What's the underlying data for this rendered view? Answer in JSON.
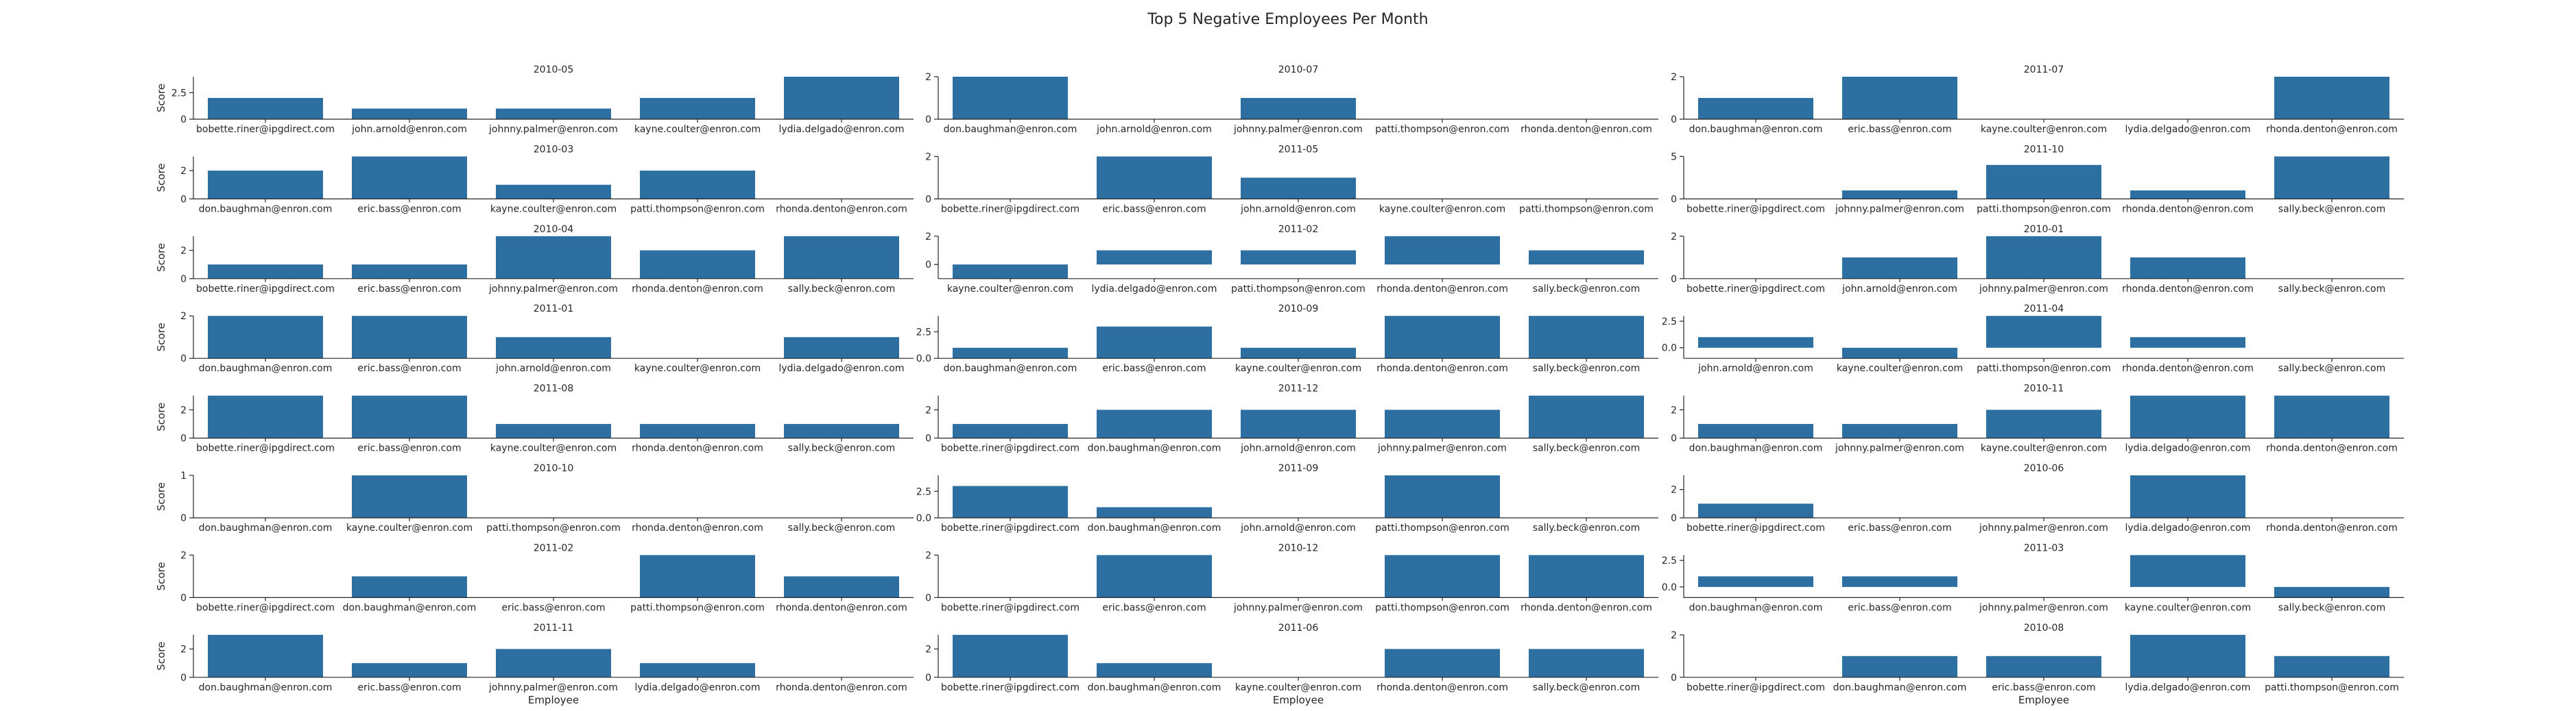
{
  "figure": {
    "title": "Top 5 Negative Employees Per Month"
  },
  "chart_data": {
    "type": "bar",
    "title": "Top 5 Negative Employees Per Month",
    "ylabel": "Score",
    "xlabel": "Employee",
    "bar_color": "#2e6fa2",
    "panels": [
      {
        "title": "2010-05",
        "ylim": [
          0,
          4
        ],
        "yticks": [
          "0",
          "2.5"
        ],
        "yticks_values": [
          0,
          2.5
        ],
        "categories": [
          "bobette.riner@ipgdirect.com",
          "john.arnold@enron.com",
          "johnny.palmer@enron.com",
          "kayne.coulter@enron.com",
          "lydia.delgado@enron.com"
        ],
        "values": [
          2,
          1,
          1,
          2,
          4
        ]
      },
      {
        "title": "2010-07",
        "ylim": [
          0,
          2
        ],
        "yticks": [
          "0",
          "2"
        ],
        "yticks_values": [
          0,
          2
        ],
        "categories": [
          "don.baughman@enron.com",
          "john.arnold@enron.com",
          "johnny.palmer@enron.com",
          "patti.thompson@enron.com",
          "rhonda.denton@enron.com"
        ],
        "values": [
          2,
          0,
          1,
          0,
          0
        ]
      },
      {
        "title": "2011-07",
        "ylim": [
          0,
          2
        ],
        "yticks": [
          "0",
          "2"
        ],
        "yticks_values": [
          0,
          2
        ],
        "categories": [
          "don.baughman@enron.com",
          "eric.bass@enron.com",
          "kayne.coulter@enron.com",
          "lydia.delgado@enron.com",
          "rhonda.denton@enron.com"
        ],
        "values": [
          1,
          2,
          0,
          0,
          2
        ]
      },
      {
        "title": "2010-03",
        "ylim": [
          0,
          3
        ],
        "yticks": [
          "0",
          "2"
        ],
        "yticks_values": [
          0,
          2
        ],
        "categories": [
          "don.baughman@enron.com",
          "eric.bass@enron.com",
          "kayne.coulter@enron.com",
          "patti.thompson@enron.com",
          "rhonda.denton@enron.com"
        ],
        "values": [
          2,
          3,
          1,
          2,
          0
        ]
      },
      {
        "title": "2011-05",
        "ylim": [
          0,
          2
        ],
        "yticks": [
          "0",
          "2"
        ],
        "yticks_values": [
          0,
          2
        ],
        "categories": [
          "bobette.riner@ipgdirect.com",
          "eric.bass@enron.com",
          "john.arnold@enron.com",
          "kayne.coulter@enron.com",
          "patti.thompson@enron.com"
        ],
        "values": [
          0,
          2,
          1,
          0,
          0
        ]
      },
      {
        "title": "2011-10",
        "ylim": [
          0,
          5
        ],
        "yticks": [
          "0",
          "5"
        ],
        "yticks_values": [
          0,
          5
        ],
        "categories": [
          "bobette.riner@ipgdirect.com",
          "johnny.palmer@enron.com",
          "patti.thompson@enron.com",
          "rhonda.denton@enron.com",
          "sally.beck@enron.com"
        ],
        "values": [
          0,
          1,
          4,
          1,
          5
        ]
      },
      {
        "title": "2010-04",
        "ylim": [
          0,
          3
        ],
        "yticks": [
          "0",
          "2"
        ],
        "yticks_values": [
          0,
          2
        ],
        "categories": [
          "bobette.riner@ipgdirect.com",
          "eric.bass@enron.com",
          "johnny.palmer@enron.com",
          "rhonda.denton@enron.com",
          "sally.beck@enron.com"
        ],
        "values": [
          1,
          1,
          3,
          2,
          3
        ]
      },
      {
        "title": "2011-02",
        "ylim": [
          -1,
          2
        ],
        "yticks": [
          "0",
          "2"
        ],
        "yticks_values": [
          0,
          2
        ],
        "categories": [
          "kayne.coulter@enron.com",
          "lydia.delgado@enron.com",
          "patti.thompson@enron.com",
          "rhonda.denton@enron.com",
          "sally.beck@enron.com"
        ],
        "values": [
          -1,
          1,
          1,
          2,
          1
        ]
      },
      {
        "title": "2010-01",
        "ylim": [
          0,
          2
        ],
        "yticks": [
          "0",
          "2"
        ],
        "yticks_values": [
          0,
          2
        ],
        "categories": [
          "bobette.riner@ipgdirect.com",
          "john.arnold@enron.com",
          "johnny.palmer@enron.com",
          "rhonda.denton@enron.com",
          "sally.beck@enron.com"
        ],
        "values": [
          0,
          1,
          2,
          1,
          0
        ]
      },
      {
        "title": "2011-01",
        "ylim": [
          0,
          2
        ],
        "yticks": [
          "0",
          "2"
        ],
        "yticks_values": [
          0,
          2
        ],
        "categories": [
          "don.baughman@enron.com",
          "eric.bass@enron.com",
          "john.arnold@enron.com",
          "kayne.coulter@enron.com",
          "lydia.delgado@enron.com"
        ],
        "values": [
          2,
          2,
          1,
          0,
          1
        ]
      },
      {
        "title": "2010-09",
        "ylim": [
          0,
          4
        ],
        "yticks": [
          "0.0",
          "2.5"
        ],
        "yticks_values": [
          0,
          2.5
        ],
        "categories": [
          "don.baughman@enron.com",
          "eric.bass@enron.com",
          "kayne.coulter@enron.com",
          "rhonda.denton@enron.com",
          "sally.beck@enron.com"
        ],
        "values": [
          1,
          3,
          1,
          4,
          4
        ]
      },
      {
        "title": "2011-04",
        "ylim": [
          -1,
          3
        ],
        "yticks": [
          "0.0",
          "2.5"
        ],
        "yticks_values": [
          0,
          2.5
        ],
        "categories": [
          "john.arnold@enron.com",
          "kayne.coulter@enron.com",
          "patti.thompson@enron.com",
          "rhonda.denton@enron.com",
          "sally.beck@enron.com"
        ],
        "values": [
          1,
          -1,
          3,
          1,
          0
        ]
      },
      {
        "title": "2011-08",
        "ylim": [
          0,
          3
        ],
        "yticks": [
          "0",
          "2"
        ],
        "yticks_values": [
          0,
          2
        ],
        "categories": [
          "bobette.riner@ipgdirect.com",
          "eric.bass@enron.com",
          "kayne.coulter@enron.com",
          "rhonda.denton@enron.com",
          "sally.beck@enron.com"
        ],
        "values": [
          3,
          3,
          1,
          1,
          1
        ]
      },
      {
        "title": "2011-12",
        "ylim": [
          0,
          3
        ],
        "yticks": [
          "0",
          "2"
        ],
        "yticks_values": [
          0,
          2
        ],
        "categories": [
          "bobette.riner@ipgdirect.com",
          "don.baughman@enron.com",
          "john.arnold@enron.com",
          "johnny.palmer@enron.com",
          "sally.beck@enron.com"
        ],
        "values": [
          1,
          2,
          2,
          2,
          3
        ]
      },
      {
        "title": "2010-11",
        "ylim": [
          0,
          3
        ],
        "yticks": [
          "0",
          "2"
        ],
        "yticks_values": [
          0,
          2
        ],
        "categories": [
          "don.baughman@enron.com",
          "johnny.palmer@enron.com",
          "kayne.coulter@enron.com",
          "lydia.delgado@enron.com",
          "rhonda.denton@enron.com"
        ],
        "values": [
          1,
          1,
          2,
          3,
          3
        ]
      },
      {
        "title": "2010-10",
        "ylim": [
          0,
          1
        ],
        "yticks": [
          "0",
          "1"
        ],
        "yticks_values": [
          0,
          1
        ],
        "categories": [
          "don.baughman@enron.com",
          "kayne.coulter@enron.com",
          "patti.thompson@enron.com",
          "rhonda.denton@enron.com",
          "sally.beck@enron.com"
        ],
        "values": [
          0,
          1,
          0,
          0,
          0
        ]
      },
      {
        "title": "2011-09",
        "ylim": [
          0,
          4
        ],
        "yticks": [
          "0.0",
          "2.5"
        ],
        "yticks_values": [
          0,
          2.5
        ],
        "categories": [
          "bobette.riner@ipgdirect.com",
          "don.baughman@enron.com",
          "john.arnold@enron.com",
          "patti.thompson@enron.com",
          "sally.beck@enron.com"
        ],
        "values": [
          3,
          1,
          0,
          4,
          0
        ]
      },
      {
        "title": "2010-06",
        "ylim": [
          0,
          3
        ],
        "yticks": [
          "0",
          "2"
        ],
        "yticks_values": [
          0,
          2
        ],
        "categories": [
          "bobette.riner@ipgdirect.com",
          "eric.bass@enron.com",
          "johnny.palmer@enron.com",
          "lydia.delgado@enron.com",
          "rhonda.denton@enron.com"
        ],
        "values": [
          1,
          0,
          0,
          3,
          0
        ]
      },
      {
        "title": "2011-02",
        "ylim": [
          0,
          2
        ],
        "yticks": [
          "0",
          "2"
        ],
        "yticks_values": [
          0,
          2
        ],
        "categories": [
          "bobette.riner@ipgdirect.com",
          "don.baughman@enron.com",
          "eric.bass@enron.com",
          "patti.thompson@enron.com",
          "rhonda.denton@enron.com"
        ],
        "values": [
          0,
          1,
          0,
          2,
          1
        ]
      },
      {
        "title": "2010-12",
        "ylim": [
          0,
          2
        ],
        "yticks": [
          "0",
          "2"
        ],
        "yticks_values": [
          0,
          2
        ],
        "categories": [
          "bobette.riner@ipgdirect.com",
          "eric.bass@enron.com",
          "johnny.palmer@enron.com",
          "patti.thompson@enron.com",
          "rhonda.denton@enron.com"
        ],
        "values": [
          0,
          2,
          0,
          2,
          2
        ]
      },
      {
        "title": "2011-03",
        "ylim": [
          -1,
          3
        ],
        "yticks": [
          "0.0",
          "2.5"
        ],
        "yticks_values": [
          0,
          2.5
        ],
        "categories": [
          "don.baughman@enron.com",
          "eric.bass@enron.com",
          "johnny.palmer@enron.com",
          "kayne.coulter@enron.com",
          "sally.beck@enron.com"
        ],
        "values": [
          1,
          1,
          0,
          3,
          -1
        ]
      },
      {
        "title": "2011-11",
        "ylim": [
          0,
          3
        ],
        "yticks": [
          "0",
          "2"
        ],
        "yticks_values": [
          0,
          2
        ],
        "categories": [
          "don.baughman@enron.com",
          "eric.bass@enron.com",
          "johnny.palmer@enron.com",
          "lydia.delgado@enron.com",
          "rhonda.denton@enron.com"
        ],
        "values": [
          3,
          1,
          2,
          1,
          0
        ]
      },
      {
        "title": "2011-06",
        "ylim": [
          0,
          3
        ],
        "yticks": [
          "0",
          "2"
        ],
        "yticks_values": [
          0,
          2
        ],
        "categories": [
          "bobette.riner@ipgdirect.com",
          "don.baughman@enron.com",
          "kayne.coulter@enron.com",
          "rhonda.denton@enron.com",
          "sally.beck@enron.com"
        ],
        "values": [
          3,
          1,
          0,
          2,
          2
        ]
      },
      {
        "title": "2010-08",
        "ylim": [
          0,
          2
        ],
        "yticks": [
          "0",
          "2"
        ],
        "yticks_values": [
          0,
          2
        ],
        "categories": [
          "bobette.riner@ipgdirect.com",
          "don.baughman@enron.com",
          "eric.bass@enron.com",
          "lydia.delgado@enron.com",
          "patti.thompson@enron.com"
        ],
        "values": [
          0,
          1,
          1,
          2,
          1
        ]
      }
    ]
  }
}
